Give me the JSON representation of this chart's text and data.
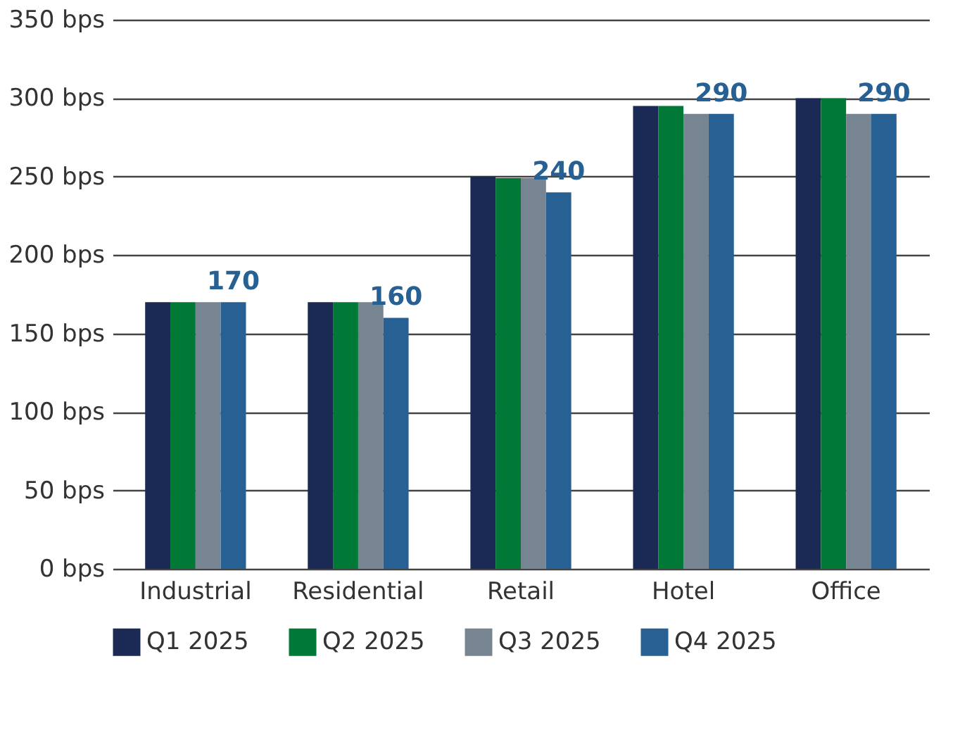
{
  "chart_data": {
    "type": "bar",
    "categories": [
      "Industrial",
      "Residential",
      "Retail",
      "Hotel",
      "Office"
    ],
    "series": [
      {
        "name": "Q1 2025",
        "color": "#1b2a55",
        "values": [
          170,
          170,
          250,
          295,
          300
        ]
      },
      {
        "name": "Q2 2025",
        "color": "#007836",
        "values": [
          170,
          170,
          249,
          295,
          300
        ]
      },
      {
        "name": "Q3 2025",
        "color": "#778593",
        "values": [
          170,
          170,
          249,
          290,
          290
        ]
      },
      {
        "name": "Q4 2025",
        "color": "#276092",
        "values": [
          170,
          160,
          240,
          290,
          290
        ],
        "value_labels": [
          "170",
          "160",
          "240",
          "290",
          "290"
        ]
      }
    ],
    "ylim": [
      0,
      350
    ],
    "yticks": [
      {
        "value": 0,
        "label": "0 bps"
      },
      {
        "value": 50,
        "label": "50 bps"
      },
      {
        "value": 100,
        "label": "100 bps"
      },
      {
        "value": 150,
        "label": "150 bps"
      },
      {
        "value": 200,
        "label": "200 bps"
      },
      {
        "value": 250,
        "label": "250 bps"
      },
      {
        "value": 300,
        "label": "300 bps"
      },
      {
        "value": 350,
        "label": "350 bps"
      }
    ],
    "grid": "y",
    "legend": "bottom"
  }
}
